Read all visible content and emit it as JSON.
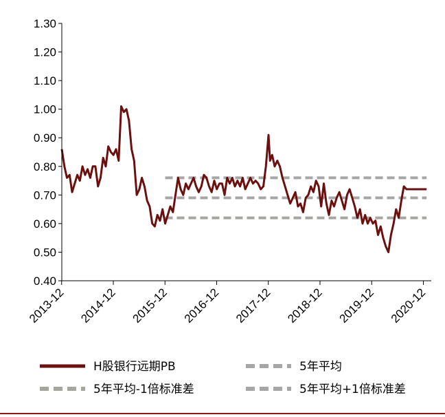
{
  "chart_data": {
    "type": "line",
    "title": "",
    "xlabel": "",
    "ylabel": "",
    "ylim": [
      0.4,
      1.3
    ],
    "y_ticks": [
      "0.40",
      "0.50",
      "0.60",
      "0.70",
      "0.80",
      "0.90",
      "1.00",
      "1.10",
      "1.20",
      "1.30"
    ],
    "x_ticks": [
      "2013-12",
      "2014-12",
      "2015-12",
      "2016-12",
      "2017-12",
      "2018-12",
      "2019-12",
      "2020-12"
    ],
    "xlim": [
      2013.92,
      2021.03
    ],
    "grid": false,
    "legend_placement": "bottom",
    "series": [
      {
        "name": "H股银行远期PB",
        "color": "#6b0f0f",
        "style": "solid",
        "x": [
          2013.92,
          2013.97,
          2014.02,
          2014.07,
          2014.12,
          2014.17,
          2014.22,
          2014.27,
          2014.32,
          2014.37,
          2014.42,
          2014.47,
          2014.52,
          2014.57,
          2014.62,
          2014.67,
          2014.72,
          2014.77,
          2014.82,
          2014.87,
          2014.92,
          2014.97,
          2015.02,
          2015.07,
          2015.12,
          2015.17,
          2015.22,
          2015.27,
          2015.32,
          2015.37,
          2015.42,
          2015.47,
          2015.52,
          2015.57,
          2015.62,
          2015.67,
          2015.72,
          2015.77,
          2015.82,
          2015.87,
          2015.92,
          2015.97,
          2016.02,
          2016.07,
          2016.12,
          2016.17,
          2016.22,
          2016.27,
          2016.32,
          2016.37,
          2016.42,
          2016.47,
          2016.52,
          2016.57,
          2016.62,
          2016.67,
          2016.72,
          2016.77,
          2016.82,
          2016.87,
          2016.92,
          2016.97,
          2017.02,
          2017.07,
          2017.12,
          2017.17,
          2017.22,
          2017.27,
          2017.32,
          2017.37,
          2017.42,
          2017.47,
          2017.52,
          2017.57,
          2017.62,
          2017.67,
          2017.72,
          2017.77,
          2017.82,
          2017.87,
          2017.92,
          2017.95,
          2017.99,
          2018.04,
          2018.09,
          2018.14,
          2018.19,
          2018.24,
          2018.29,
          2018.34,
          2018.39,
          2018.44,
          2018.49,
          2018.54,
          2018.59,
          2018.64,
          2018.69,
          2018.74,
          2018.79,
          2018.84,
          2018.89,
          2018.94,
          2018.99,
          2019.04,
          2019.09,
          2019.14,
          2019.19,
          2019.24,
          2019.29,
          2019.34,
          2019.39,
          2019.44,
          2019.49,
          2019.54,
          2019.59,
          2019.64,
          2019.69,
          2019.74,
          2019.79,
          2019.84,
          2019.89,
          2019.94,
          2019.99,
          2020.04,
          2020.09,
          2020.14,
          2020.19,
          2020.24,
          2020.29,
          2020.34,
          2020.39,
          2020.44,
          2020.49,
          2020.54,
          2020.59,
          2020.64,
          2020.69,
          2020.74,
          2020.79,
          2020.84,
          2020.89,
          2020.94,
          2020.98
        ],
        "y": [
          0.86,
          0.8,
          0.76,
          0.77,
          0.71,
          0.74,
          0.77,
          0.75,
          0.8,
          0.77,
          0.79,
          0.76,
          0.8,
          0.8,
          0.73,
          0.76,
          0.83,
          0.8,
          0.87,
          0.85,
          0.84,
          0.86,
          0.82,
          1.01,
          0.99,
          1.0,
          0.96,
          0.86,
          0.82,
          0.7,
          0.72,
          0.76,
          0.73,
          0.68,
          0.66,
          0.6,
          0.59,
          0.63,
          0.61,
          0.65,
          0.6,
          0.63,
          0.66,
          0.64,
          0.7,
          0.76,
          0.72,
          0.7,
          0.74,
          0.72,
          0.74,
          0.76,
          0.73,
          0.71,
          0.73,
          0.77,
          0.76,
          0.73,
          0.71,
          0.75,
          0.72,
          0.74,
          0.74,
          0.7,
          0.76,
          0.74,
          0.76,
          0.73,
          0.75,
          0.73,
          0.76,
          0.72,
          0.74,
          0.76,
          0.74,
          0.75,
          0.74,
          0.72,
          0.73,
          0.8,
          0.91,
          0.82,
          0.84,
          0.8,
          0.82,
          0.8,
          0.76,
          0.73,
          0.7,
          0.67,
          0.69,
          0.71,
          0.66,
          0.67,
          0.64,
          0.69,
          0.7,
          0.73,
          0.71,
          0.75,
          0.73,
          0.66,
          0.74,
          0.67,
          0.63,
          0.68,
          0.66,
          0.69,
          0.71,
          0.68,
          0.65,
          0.7,
          0.72,
          0.69,
          0.66,
          0.62,
          0.65,
          0.6,
          0.63,
          0.6,
          0.62,
          0.6,
          0.61,
          0.56,
          0.59,
          0.55,
          0.52,
          0.5,
          0.56,
          0.6,
          0.65,
          0.62,
          0.68,
          0.73,
          0.72,
          0.72,
          0.72,
          0.72,
          0.72,
          0.72,
          0.72,
          0.72,
          0.72
        ]
      },
      {
        "name": "5年平均",
        "color": "#a6a6a6",
        "style": "dashed",
        "x": [
          2015.92,
          2020.98
        ],
        "y": [
          0.69,
          0.69
        ]
      },
      {
        "name": "5年平均-1倍标准差",
        "color": "#a6a6a0",
        "style": "dashed",
        "x": [
          2015.92,
          2020.98
        ],
        "y": [
          0.62,
          0.62
        ]
      },
      {
        "name": "5年平均+1倍标准差",
        "color": "#a6a6a6",
        "style": "dashed",
        "x": [
          2015.92,
          2020.98
        ],
        "y": [
          0.76,
          0.76
        ]
      }
    ],
    "legend": [
      {
        "label": "H股银行远期PB",
        "series_index": 0
      },
      {
        "label": "5年平均",
        "series_index": 1
      },
      {
        "label": "5年平均-1倍标准差",
        "series_index": 2
      },
      {
        "label": "5年平均+1倍标准差",
        "series_index": 3
      }
    ]
  },
  "colors": {
    "axis": "#000000",
    "bottom_rule": "#8b1a1a"
  }
}
